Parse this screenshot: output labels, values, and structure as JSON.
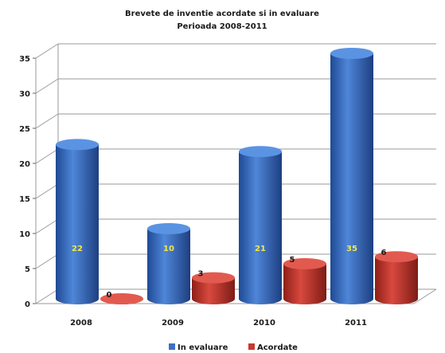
{
  "chart_data": {
    "type": "bar",
    "title": "Brevete de inventie acordate si in evaluare",
    "subtitle": "Perioada 2008-2011",
    "categories": [
      "2008",
      "2009",
      "2010",
      "2011"
    ],
    "series": [
      {
        "name": "In evaluare",
        "values": [
          22,
          10,
          21,
          35
        ],
        "color": "#3f6fc4"
      },
      {
        "name": "Acordate",
        "values": [
          0,
          3,
          5,
          6
        ],
        "color": "#c8392f"
      }
    ],
    "ylim": [
      0,
      35
    ],
    "yticks": [
      0,
      5,
      10,
      15,
      20,
      25,
      30,
      35
    ],
    "grid": true,
    "legend": "bottom",
    "style": "3d-cylinder"
  }
}
